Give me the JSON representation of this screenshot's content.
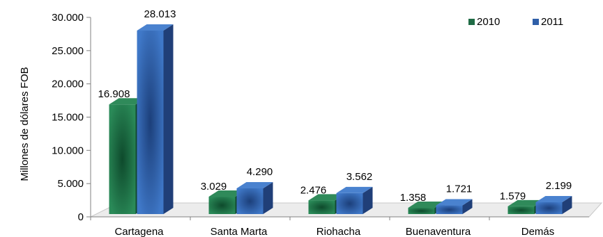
{
  "chart_data": {
    "type": "bar",
    "categories": [
      "Cartagena",
      "Santa Marta",
      "Riohacha",
      "Buenaventura",
      "Demás"
    ],
    "series": [
      {
        "name": "2010",
        "values": [
          16908,
          3029,
          2476,
          1358,
          1579
        ],
        "labels": [
          "16.908",
          "3.029",
          "2.476",
          "1.358",
          "1.579"
        ],
        "color": "#1f6b45"
      },
      {
        "name": "2011",
        "values": [
          28013,
          4290,
          3562,
          1721,
          2199
        ],
        "labels": [
          "28.013",
          "4.290",
          "3.562",
          "1.721",
          "2.199"
        ],
        "color": "#2f5fa8"
      }
    ],
    "ylabel": "Millones de dólares FOB",
    "ylim": [
      0,
      30000
    ],
    "yticks": [
      0,
      5000,
      10000,
      15000,
      20000,
      25000,
      30000
    ],
    "ytick_labels": [
      "0",
      "5.000",
      "10.000",
      "15.000",
      "20.000",
      "25.000",
      "30.000"
    ],
    "legend_position": "top-right",
    "style": "3d-column"
  }
}
